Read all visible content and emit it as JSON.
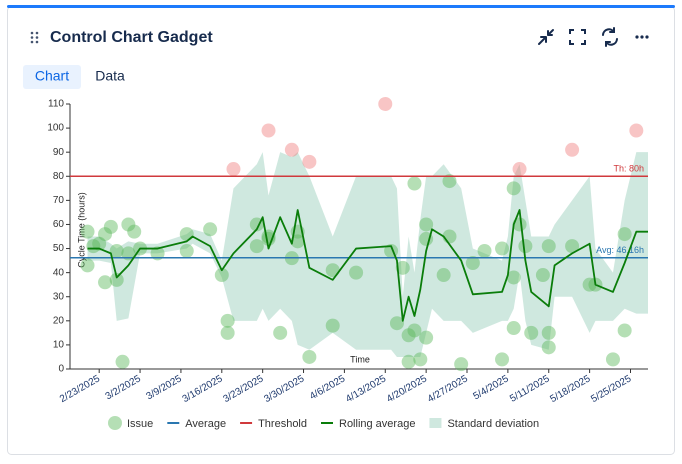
{
  "header": {
    "title": "Control Chart Gadget"
  },
  "tabs": [
    "Chart",
    "Data"
  ],
  "chart_data": {
    "type": "control",
    "ylabel": "Cycle Time (hours)",
    "xlabel": "Time",
    "xlim": [
      "2/18/2025",
      "5/28/2025"
    ],
    "ylim": [
      0,
      110
    ],
    "yticks": [
      0,
      10,
      20,
      30,
      40,
      50,
      60,
      70,
      80,
      90,
      100,
      110
    ],
    "xticks": [
      "2/23/2025",
      "3/2/2025",
      "3/9/2025",
      "3/16/2025",
      "3/23/2025",
      "3/30/2025",
      "4/6/2025",
      "4/13/2025",
      "4/20/2025",
      "4/27/2025",
      "5/4/2025",
      "5/11/2025",
      "5/18/2025",
      "5/25/2025"
    ],
    "series": [
      {
        "name": "Issue",
        "color": "#5cb85c",
        "outlier_color": "#ef7f7f",
        "x": [
          "2/21/2025",
          "2/21/2025",
          "2/22/2025",
          "2/23/2025",
          "2/24/2025",
          "2/24/2025",
          "2/25/2025",
          "2/26/2025",
          "2/26/2025",
          "2/27/2025",
          "2/28/2025",
          "3/1/2025",
          "2/28/2025",
          "3/2/2025",
          "3/5/2025",
          "3/10/2025",
          "3/10/2025",
          "3/14/2025",
          "3/16/2025",
          "3/17/2025",
          "3/17/2025",
          "3/18/2025",
          "3/22/2025",
          "3/22/2025",
          "3/24/2025",
          "3/24/2025",
          "3/24/2025",
          "3/26/2025",
          "3/28/2025",
          "3/28/2025",
          "3/29/2025",
          "3/29/2025",
          "3/31/2025",
          "3/31/2025",
          "4/4/2025",
          "4/4/2025",
          "4/8/2025",
          "4/13/2025",
          "4/14/2025",
          "4/15/2025",
          "4/16/2025",
          "4/17/2025",
          "4/17/2025",
          "4/18/2025",
          "4/18/2025",
          "4/19/2025",
          "4/20/2025",
          "4/20/2025",
          "4/20/2025",
          "4/23/2025",
          "4/24/2025",
          "4/24/2025",
          "4/26/2025",
          "4/28/2025",
          "4/30/2025",
          "5/3/2025",
          "5/3/2025",
          "5/5/2025",
          "5/5/2025",
          "5/5/2025",
          "5/6/2025",
          "5/6/2025",
          "5/7/2025",
          "5/8/2025",
          "5/10/2025",
          "5/11/2025",
          "5/11/2025",
          "5/11/2025",
          "5/15/2025",
          "5/15/2025",
          "5/18/2025",
          "5/19/2025",
          "5/22/2025",
          "5/24/2025",
          "5/24/2025",
          "5/26/2025"
        ],
        "values": [
          57,
          43,
          51,
          52,
          56,
          36,
          59,
          49,
          37,
          3,
          60,
          57,
          48,
          50,
          48,
          56,
          49,
          58,
          39,
          20,
          15,
          83,
          60,
          51,
          55,
          99,
          54,
          15,
          91,
          46,
          53,
          57,
          86,
          5,
          18,
          41,
          40,
          110,
          49,
          19,
          42,
          3,
          14,
          16,
          77,
          4,
          13,
          54,
          60,
          39,
          55,
          78,
          2,
          44,
          49,
          4,
          50,
          17,
          38,
          75,
          60,
          83,
          51,
          15,
          39,
          15,
          9,
          51,
          91,
          51,
          35,
          35,
          4,
          56,
          16,
          99
        ]
      },
      {
        "name": "Average",
        "color": "#2a77b0",
        "value": 46.16,
        "value_label": "Avg: 46.16h"
      },
      {
        "name": "Threshold",
        "color": "#d0393c",
        "value": 80,
        "value_label": "Th: 80h"
      },
      {
        "name": "Rolling average",
        "color": "#0a7d0a",
        "x": [
          "2/21/2025",
          "2/23/2025",
          "2/25/2025",
          "2/26/2025",
          "2/28/2025",
          "3/2/2025",
          "3/5/2025",
          "3/10/2025",
          "3/11/2025",
          "3/14/2025",
          "3/16/2025",
          "3/18/2025",
          "3/22/2025",
          "3/23/2025",
          "3/24/2025",
          "3/26/2025",
          "3/28/2025",
          "3/29/2025",
          "3/31/2025",
          "4/4/2025",
          "4/8/2025",
          "4/14/2025",
          "4/15/2025",
          "4/16/2025",
          "4/17/2025",
          "4/18/2025",
          "4/19/2025",
          "4/20/2025",
          "4/21/2025",
          "4/23/2025",
          "4/26/2025",
          "4/28/2025",
          "5/3/2025",
          "5/4/2025",
          "5/5/2025",
          "5/6/2025",
          "5/7/2025",
          "5/8/2025",
          "5/11/2025",
          "5/12/2025",
          "5/15/2025",
          "5/18/2025",
          "5/19/2025",
          "5/22/2025",
          "5/24/2025",
          "5/26/2025",
          "5/28/2025"
        ],
        "values": [
          50,
          50,
          48,
          38,
          43,
          50,
          50,
          53,
          55,
          51,
          41,
          48,
          58,
          63,
          50,
          63,
          52,
          66,
          42,
          37,
          50,
          51,
          45,
          20,
          30,
          22,
          33,
          49,
          58,
          55,
          45,
          31,
          32,
          39,
          60,
          66,
          45,
          32,
          26,
          43,
          48,
          52,
          35,
          32,
          44,
          57,
          57
        ]
      },
      {
        "name": "Standard deviation",
        "color": "#8cc9b3",
        "x": [
          "2/21/2025",
          "2/23/2025",
          "2/25/2025",
          "2/26/2025",
          "2/28/2025",
          "3/2/2025",
          "3/5/2025",
          "3/10/2025",
          "3/11/2025",
          "3/14/2025",
          "3/16/2025",
          "3/18/2025",
          "3/22/2025",
          "3/23/2025",
          "3/24/2025",
          "3/26/2025",
          "3/28/2025",
          "3/29/2025",
          "3/31/2025",
          "4/4/2025",
          "4/8/2025",
          "4/14/2025",
          "4/15/2025",
          "4/16/2025",
          "4/17/2025",
          "4/18/2025",
          "4/19/2025",
          "4/20/2025",
          "4/21/2025",
          "4/23/2025",
          "4/26/2025",
          "4/28/2025",
          "5/3/2025",
          "5/4/2025",
          "5/5/2025",
          "5/6/2025",
          "5/7/2025",
          "5/8/2025",
          "5/11/2025",
          "5/12/2025",
          "5/15/2025",
          "5/18/2025",
          "5/19/2025",
          "5/22/2025",
          "5/24/2025",
          "5/26/2025",
          "5/28/2025"
        ],
        "lower": [
          45,
          45,
          44,
          20,
          21,
          48,
          48,
          50,
          52,
          48,
          38,
          20,
          20,
          25,
          20,
          25,
          20,
          10,
          8,
          15,
          8,
          8,
          5,
          5,
          5,
          5,
          5,
          15,
          25,
          20,
          20,
          15,
          20,
          20,
          25,
          40,
          20,
          10,
          8,
          30,
          30,
          15,
          20,
          20,
          25,
          23,
          23
        ],
        "upper": [
          55,
          55,
          52,
          50,
          53,
          52,
          52,
          56,
          58,
          56,
          45,
          75,
          85,
          90,
          72,
          90,
          88,
          90,
          80,
          55,
          80,
          80,
          75,
          30,
          55,
          40,
          62,
          80,
          80,
          85,
          75,
          50,
          45,
          55,
          80,
          85,
          70,
          55,
          55,
          60,
          70,
          80,
          50,
          40,
          70,
          90,
          90
        ]
      }
    ]
  }
}
